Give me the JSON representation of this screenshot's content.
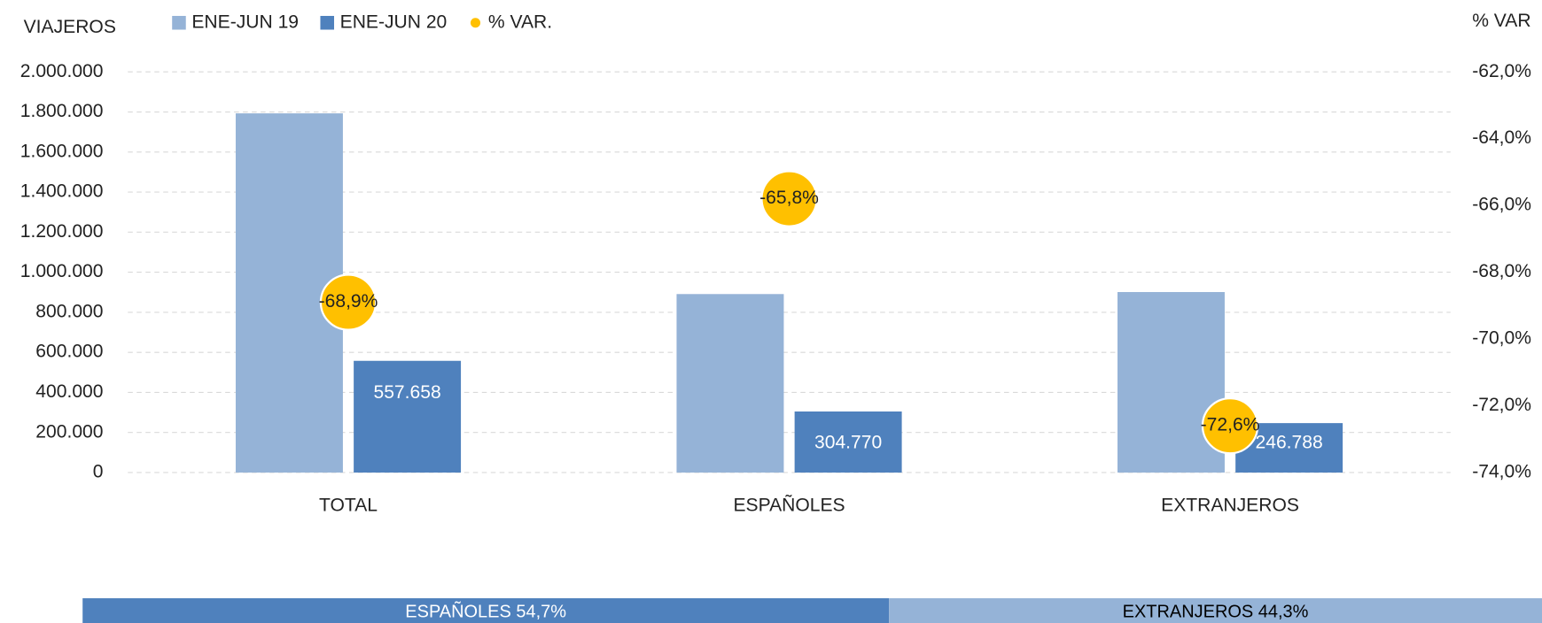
{
  "chart_data": [
    {
      "type": "bar",
      "y_label": "VIAJEROS",
      "y2_label": "% VAR",
      "categories": [
        "TOTAL",
        "ESPAÑOLES",
        "EXTRANJEROS"
      ],
      "series": [
        {
          "name": "ENE-JUN 19",
          "color": "#95b3d7",
          "values": [
            1793000,
            891000,
            901000
          ]
        },
        {
          "name": "ENE-JUN 20",
          "color": "#4f81bd",
          "values": [
            557658,
            304770,
            246788
          ],
          "value_labels": [
            "557.658",
            "304.770",
            "246.788"
          ]
        },
        {
          "name": "% VAR.",
          "type": "scatter",
          "axis": "y2",
          "color": "#ffc000",
          "values": [
            -68.9,
            -65.8,
            -72.6
          ],
          "value_labels": [
            "-68,9%",
            "-65,8%",
            "-72,6%"
          ]
        }
      ],
      "ylim": [
        0,
        2000000
      ],
      "yticks": [
        0,
        {
          "value": 200000,
          "label": "200.000"
        },
        {
          "value": 400000,
          "label": "400.000"
        },
        {
          "value": 600000,
          "label": "600.000"
        },
        {
          "value": 800000,
          "label": "800.000"
        },
        {
          "value": 1000000,
          "label": "1.000.000"
        },
        {
          "value": 1200000,
          "label": "1.200.000"
        },
        {
          "value": 1400000,
          "label": "1.400.000"
        },
        {
          "value": 1600000,
          "label": "1.600.000"
        },
        {
          "value": 1800000,
          "label": "1.800.000"
        },
        {
          "value": 2000000,
          "label": "2.000.000"
        }
      ],
      "y2lim": [
        -74,
        -62
      ],
      "y2ticks": [
        {
          "value": -74,
          "label": "-74,0%"
        },
        {
          "value": -72,
          "label": "-72,0%"
        },
        {
          "value": -70,
          "label": "-70,0%"
        },
        {
          "value": -68,
          "label": "-68,0%"
        },
        {
          "value": -66,
          "label": "-66,0%"
        },
        {
          "value": -64,
          "label": "-64,0%"
        },
        {
          "value": -62,
          "label": "-62,0%"
        }
      ],
      "grid": true,
      "legend": "top-left"
    },
    {
      "type": "stacked-bar",
      "series": [
        {
          "name": "ESPAÑOLES",
          "color": "#4f81bd",
          "values": [
            54.7
          ],
          "value_labels": [
            "54,7%"
          ]
        },
        {
          "name": "EXTRANJEROS",
          "color": "#95b3d7",
          "values": [
            44.3
          ],
          "value_labels": [
            "44,3%"
          ]
        }
      ]
    }
  ]
}
